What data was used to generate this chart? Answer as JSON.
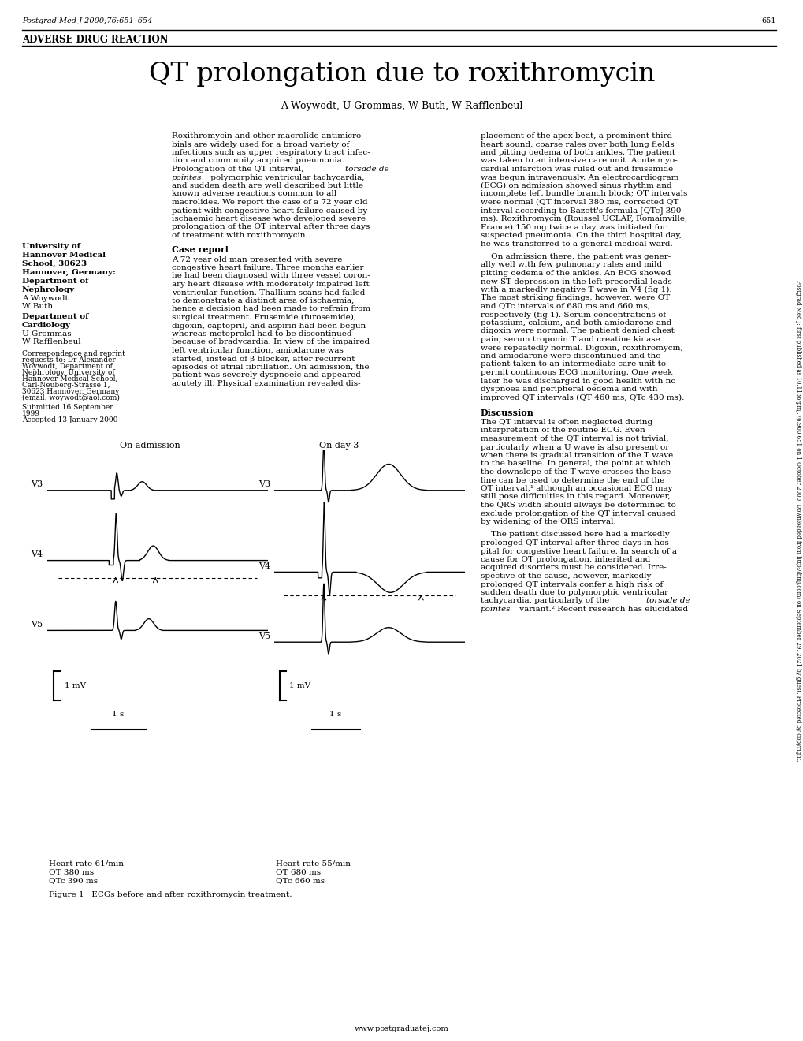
{
  "title": "QT prolongation due to roxithromycin",
  "journal_header": "Postgrad Med J 2000;76:651–654",
  "page_number": "651",
  "section_label": "ADVERSE DRUG REACTION",
  "authors": "A Woywodt, U Grommas, W Buth, W Rafflenbeul",
  "sidebar_text": "Postgrad Med J: first published as 10.1136/pmj.76.900.651 on 1 October 2000. Downloaded from http://bmj.com/ on September 29, 2021 by guest. Protected by copyright.",
  "figure_caption": "Figure 1   ECGs before and after roxithromycin treatment.",
  "website": "www.postgraduatej.com",
  "bg_color": "#ffffff",
  "text_color": "#000000"
}
